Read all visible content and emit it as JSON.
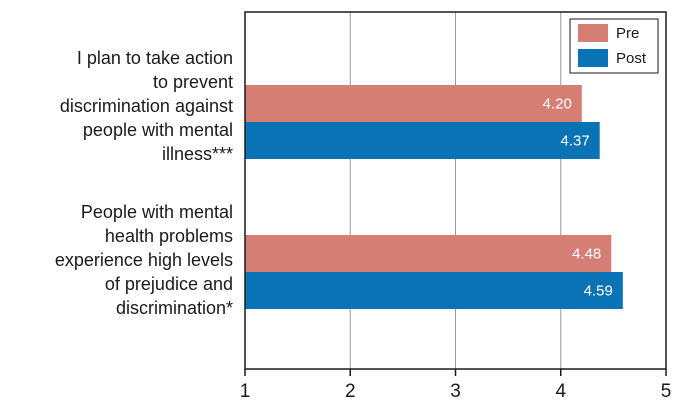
{
  "chart_data": {
    "type": "bar",
    "orientation": "horizontal",
    "categories": [
      "I plan to take action to prevent discrimination against people with mental illness***",
      "People with mental health problems experience high levels of prejudice and discrimination*"
    ],
    "category_lines": [
      [
        "I plan to take action",
        "to prevent",
        "discrimination against",
        "people with mental",
        "illness***"
      ],
      [
        "People with mental",
        "health problems",
        "experience high levels",
        "of prejudice and",
        "discrimination*"
      ]
    ],
    "series": [
      {
        "name": "Pre",
        "values": [
          4.2,
          4.48
        ],
        "labels": [
          "4.20",
          "4.48"
        ],
        "color": "#d57f74"
      },
      {
        "name": "Post",
        "values": [
          4.37,
          4.59
        ],
        "labels": [
          "4.37",
          "4.59"
        ],
        "color": "#0a73b6"
      }
    ],
    "xlim": [
      1,
      5
    ],
    "xticks": [
      1,
      2,
      3,
      4,
      5
    ],
    "xlabel": "",
    "ylabel": "",
    "title": "",
    "grid": "vertical",
    "legend": "top-right"
  }
}
